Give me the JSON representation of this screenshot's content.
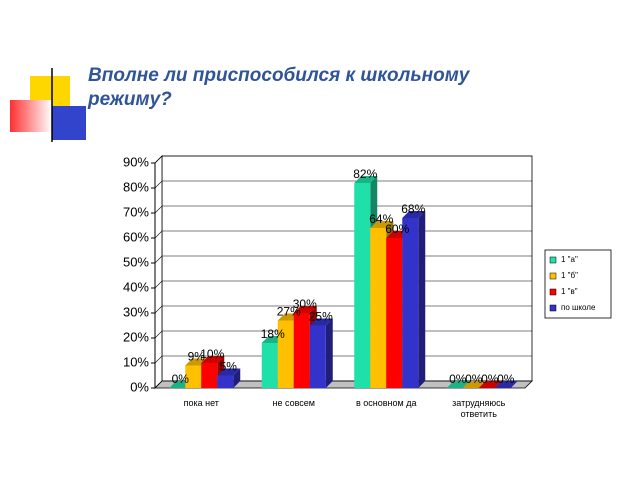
{
  "chart_data": {
    "type": "bar3d",
    "title": "Вполне ли приспособился к школьному режиму?",
    "categories": [
      "пока нет",
      "не совсем",
      "в основном да",
      "затрудняюсь ответить"
    ],
    "series": [
      {
        "name": "1 \"а\"",
        "color": "#1fe0a8",
        "values": [
          0,
          18,
          82,
          0
        ],
        "value_labels": [
          "0%",
          "18%",
          "82%",
          "0%"
        ]
      },
      {
        "name": "1 \"б\"",
        "color": "#ffc000",
        "values": [
          9,
          27,
          64,
          0
        ],
        "value_labels": [
          "9%",
          "27%",
          "64%",
          "0%"
        ]
      },
      {
        "name": "1 \"в\"",
        "color": "#ff0000",
        "values": [
          10,
          30,
          60,
          0
        ],
        "value_labels": [
          "10%",
          "30%",
          "60%",
          "0%"
        ]
      },
      {
        "name": "по школе",
        "color": "#3333cc",
        "values": [
          5,
          25,
          68,
          0
        ],
        "value_labels": [
          "5%",
          "25%",
          "68%",
          "0%"
        ]
      }
    ],
    "ylim": [
      0,
      90
    ],
    "yticks": [
      {
        "value": 0,
        "label": "0%"
      },
      {
        "value": 10,
        "label": "10%"
      },
      {
        "value": 20,
        "label": "20%"
      },
      {
        "value": 30,
        "label": "30%"
      },
      {
        "value": 40,
        "label": "40%"
      },
      {
        "value": 50,
        "label": "50%"
      },
      {
        "value": 60,
        "label": "60%"
      },
      {
        "value": 70,
        "label": "70%"
      },
      {
        "value": 80,
        "label": "80%"
      },
      {
        "value": 90,
        "label": "90%"
      }
    ],
    "grid": true,
    "legend": "right"
  }
}
